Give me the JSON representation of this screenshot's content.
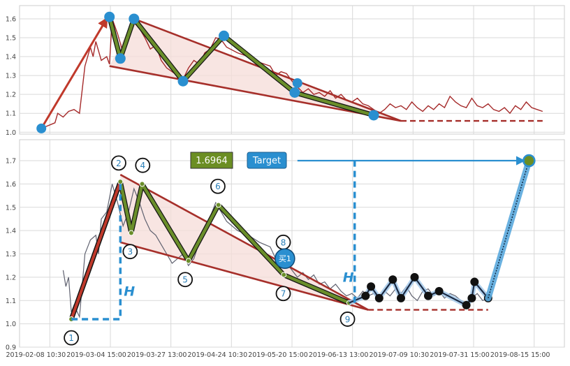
{
  "chart_data": [
    {
      "type": "line",
      "panel": "top",
      "yticks": [
        "1.0",
        "1.1",
        "1.2",
        "1.3",
        "1.4",
        "1.5",
        "1.6"
      ],
      "ylim": [
        0.99,
        1.67
      ],
      "xlim": [
        0,
        100
      ],
      "grid": true,
      "series": [
        {
          "values": [
            [
              4,
              1.02
            ],
            [
              6.5,
              1.05
            ],
            [
              7,
              1.1
            ],
            [
              8,
              1.08
            ],
            [
              9,
              1.11
            ],
            [
              10,
              1.12
            ],
            [
              11,
              1.1
            ],
            [
              12,
              1.35
            ],
            [
              13,
              1.45
            ],
            [
              13.5,
              1.4
            ],
            [
              14,
              1.48
            ],
            [
              15,
              1.38
            ],
            [
              16,
              1.4
            ],
            [
              16.5,
              1.36
            ],
            [
              17,
              1.6
            ],
            [
              18,
              1.52
            ],
            [
              19,
              1.42
            ],
            [
              20,
              1.5
            ],
            [
              21,
              1.58
            ],
            [
              22,
              1.55
            ],
            [
              23,
              1.5
            ],
            [
              24,
              1.44
            ],
            [
              25,
              1.46
            ],
            [
              26,
              1.38
            ],
            [
              27,
              1.34
            ],
            [
              28,
              1.32
            ],
            [
              29,
              1.3
            ],
            [
              30,
              1.28
            ],
            [
              31,
              1.34
            ],
            [
              32,
              1.38
            ],
            [
              33,
              1.36
            ],
            [
              34,
              1.42
            ],
            [
              35,
              1.44
            ],
            [
              36,
              1.5
            ],
            [
              37,
              1.49
            ],
            [
              38,
              1.45
            ],
            [
              40,
              1.42
            ],
            [
              42,
              1.4
            ],
            [
              44,
              1.37
            ],
            [
              46,
              1.35
            ],
            [
              47,
              1.3
            ],
            [
              48,
              1.32
            ],
            [
              49,
              1.31
            ],
            [
              50,
              1.27
            ],
            [
              51,
              1.24
            ],
            [
              52,
              1.21
            ],
            [
              53,
              1.23
            ],
            [
              54,
              1.2
            ],
            [
              55,
              1.21
            ],
            [
              56,
              1.19
            ],
            [
              57,
              1.22
            ],
            [
              58,
              1.18
            ],
            [
              59,
              1.2
            ],
            [
              60,
              1.17
            ],
            [
              61,
              1.16
            ],
            [
              62,
              1.18
            ],
            [
              63,
              1.15
            ],
            [
              64,
              1.14
            ],
            [
              65,
              1.12
            ],
            [
              66,
              1.1
            ],
            [
              67,
              1.12
            ],
            [
              68,
              1.15
            ],
            [
              69,
              1.13
            ],
            [
              70,
              1.14
            ],
            [
              71,
              1.12
            ],
            [
              72,
              1.16
            ],
            [
              73,
              1.13
            ],
            [
              74,
              1.11
            ],
            [
              75,
              1.14
            ],
            [
              76,
              1.12
            ],
            [
              77,
              1.15
            ],
            [
              78,
              1.13
            ],
            [
              79,
              1.19
            ],
            [
              80,
              1.16
            ],
            [
              81,
              1.14
            ],
            [
              82,
              1.13
            ],
            [
              83,
              1.18
            ],
            [
              84,
              1.14
            ],
            [
              85,
              1.13
            ],
            [
              86,
              1.15
            ],
            [
              87,
              1.12
            ],
            [
              88,
              1.11
            ],
            [
              89,
              1.13
            ],
            [
              90,
              1.1
            ],
            [
              91,
              1.14
            ],
            [
              92,
              1.12
            ],
            [
              93,
              1.16
            ],
            [
              94,
              1.13
            ],
            [
              95,
              1.12
            ],
            [
              96,
              1.11
            ]
          ]
        }
      ],
      "pattern_points": [
        [
          16.5,
          1.61
        ],
        [
          18.5,
          1.39
        ],
        [
          21,
          1.6
        ],
        [
          30,
          1.27
        ],
        [
          37.5,
          1.51
        ],
        [
          50.5,
          1.21
        ],
        [
          65,
          1.09
        ]
      ],
      "lead_in_arrow": [
        [
          4,
          1.02
        ],
        [
          16,
          1.6
        ]
      ],
      "channel_upper": [
        [
          21,
          1.6
        ],
        [
          70,
          1.06
        ]
      ],
      "channel_lower": [
        [
          16.5,
          1.35
        ],
        [
          70,
          1.06
        ]
      ],
      "support_line": [
        [
          70,
          1.06
        ],
        [
          96,
          1.06
        ]
      ]
    },
    {
      "type": "line",
      "panel": "bottom",
      "yticks": [
        "0.9",
        "1.0",
        "1.1",
        "1.2",
        "1.3",
        "1.4",
        "1.5",
        "1.6",
        "1.7"
      ],
      "xticks": [
        "2019-02-08 10:30",
        "2019-03-04 15:00",
        "2019-03-27 13:00",
        "2019-04-24 10:30",
        "2019-05-20 15:00",
        "2019-06-13 13:00",
        "2019-07-09 10:30",
        "2019-07-31 15:00",
        "2019-08-15 15:00"
      ],
      "ylim": [
        0.9,
        1.79
      ],
      "xlim": [
        0,
        100
      ],
      "grid": true,
      "price_line": [
        [
          8,
          1.23
        ],
        [
          8.5,
          1.16
        ],
        [
          9,
          1.2
        ],
        [
          9.5,
          1.05
        ],
        [
          10,
          1.08
        ],
        [
          11,
          1.03
        ],
        [
          12,
          1.3
        ],
        [
          13,
          1.36
        ],
        [
          14,
          1.38
        ],
        [
          14.5,
          1.3
        ],
        [
          15,
          1.45
        ],
        [
          16,
          1.48
        ],
        [
          17,
          1.6
        ],
        [
          18,
          1.52
        ],
        [
          19,
          1.42
        ],
        [
          20,
          1.48
        ],
        [
          21,
          1.58
        ],
        [
          22,
          1.52
        ],
        [
          23,
          1.45
        ],
        [
          24,
          1.4
        ],
        [
          25,
          1.38
        ],
        [
          26,
          1.34
        ],
        [
          27,
          1.3
        ],
        [
          28,
          1.26
        ],
        [
          29,
          1.28
        ],
        [
          30,
          1.3
        ],
        [
          31,
          1.25
        ],
        [
          32,
          1.28
        ],
        [
          33,
          1.35
        ],
        [
          34,
          1.4
        ],
        [
          35,
          1.46
        ],
        [
          36,
          1.52
        ],
        [
          37,
          1.48
        ],
        [
          38,
          1.44
        ],
        [
          40,
          1.4
        ],
        [
          42,
          1.38
        ],
        [
          44,
          1.35
        ],
        [
          46,
          1.33
        ],
        [
          47,
          1.28
        ],
        [
          48,
          1.3
        ],
        [
          49,
          1.26
        ],
        [
          50,
          1.23
        ],
        [
          51,
          1.2
        ],
        [
          52,
          1.22
        ],
        [
          53,
          1.19
        ],
        [
          54,
          1.21
        ],
        [
          55,
          1.17
        ],
        [
          56,
          1.18
        ],
        [
          57,
          1.15
        ],
        [
          58,
          1.17
        ],
        [
          59,
          1.14
        ],
        [
          60,
          1.12
        ],
        [
          61,
          1.13
        ],
        [
          62,
          1.11
        ],
        [
          63,
          1.14
        ],
        [
          64,
          1.12
        ],
        [
          65,
          1.13
        ],
        [
          66,
          1.11
        ],
        [
          67,
          1.14
        ],
        [
          68,
          1.12
        ],
        [
          69,
          1.15
        ],
        [
          70,
          1.13
        ],
        [
          71,
          1.16
        ],
        [
          72,
          1.12
        ],
        [
          73,
          1.1
        ],
        [
          74,
          1.14
        ],
        [
          75,
          1.15
        ],
        [
          76,
          1.12
        ],
        [
          77,
          1.14
        ],
        [
          78,
          1.11
        ],
        [
          79,
          1.13
        ],
        [
          80,
          1.12
        ],
        [
          81,
          1.1
        ],
        [
          82,
          1.09
        ],
        [
          83,
          1.11
        ],
        [
          84,
          1.13
        ],
        [
          85,
          1.1
        ],
        [
          86,
          1.11
        ]
      ],
      "pattern_points": [
        [
          9.5,
          1.02
        ],
        [
          18.5,
          1.61
        ],
        [
          20.5,
          1.39
        ],
        [
          22.5,
          1.6
        ],
        [
          31,
          1.27
        ],
        [
          36.5,
          1.51
        ],
        [
          48.5,
          1.21
        ],
        [
          60.5,
          1.09
        ]
      ],
      "post_points": [
        [
          63.5,
          1.12
        ],
        [
          64.5,
          1.16
        ],
        [
          66,
          1.11
        ],
        [
          68.5,
          1.19
        ],
        [
          70,
          1.11
        ],
        [
          72.5,
          1.2
        ],
        [
          75,
          1.12
        ],
        [
          77,
          1.14
        ],
        [
          82,
          1.08
        ],
        [
          83,
          1.11
        ],
        [
          83.5,
          1.18
        ],
        [
          86,
          1.11
        ]
      ],
      "channel_upper": [
        [
          18.5,
          1.64
        ],
        [
          64,
          1.06
        ]
      ],
      "channel_lower": [
        [
          18.5,
          1.35
        ],
        [
          64,
          1.06
        ]
      ],
      "support_line": [
        [
          64,
          1.06
        ],
        [
          86,
          1.06
        ]
      ],
      "projection": [
        [
          86,
          1.11
        ],
        [
          93.5,
          1.7
        ]
      ],
      "target_line_y": 1.7,
      "target_arrow_from_x": 51,
      "target_arrow_to_x": 92.5,
      "height_markers": [
        {
          "from_x": 9.5,
          "to_x": 18.5,
          "base": 1.02,
          "top": 1.61,
          "label": "H"
        },
        {
          "from_x": 60.5,
          "to_x": 61.5,
          "base": 1.09,
          "top": 1.7,
          "label": "H"
        }
      ],
      "annotations": [
        {
          "text": "1",
          "x": 9.5,
          "y": 0.94
        },
        {
          "text": "2",
          "x": 18.2,
          "y": 1.69
        },
        {
          "text": "3",
          "x": 20.3,
          "y": 1.31
        },
        {
          "text": "4",
          "x": 22.6,
          "y": 1.68
        },
        {
          "text": "5",
          "x": 30.4,
          "y": 1.19
        },
        {
          "text": "6",
          "x": 36.4,
          "y": 1.59
        },
        {
          "text": "7",
          "x": 48.4,
          "y": 1.13
        },
        {
          "text": "8",
          "x": 48.4,
          "y": 1.35
        },
        {
          "text": "9",
          "x": 60.2,
          "y": 1.02
        }
      ],
      "buy_marker": {
        "text": "买1",
        "x": 48.7,
        "y": 1.28
      },
      "value_badge": "1.6964",
      "target_label": "Target"
    }
  ],
  "colors": {
    "price": "#a52a2a",
    "price_gray": "#606270",
    "pattern_fill": "#6a8e2a",
    "pattern_stroke": "#151515",
    "channel": "#a62f2a",
    "channel_fill": "#f6dcd8",
    "point_blue": "#2a8fd0",
    "dash_blue": "#2a8fd0",
    "badge_green": "#6b8e23",
    "badge_blue": "#2a8fd0",
    "grid": "#d9d9d9",
    "axis_text": "#444444"
  }
}
